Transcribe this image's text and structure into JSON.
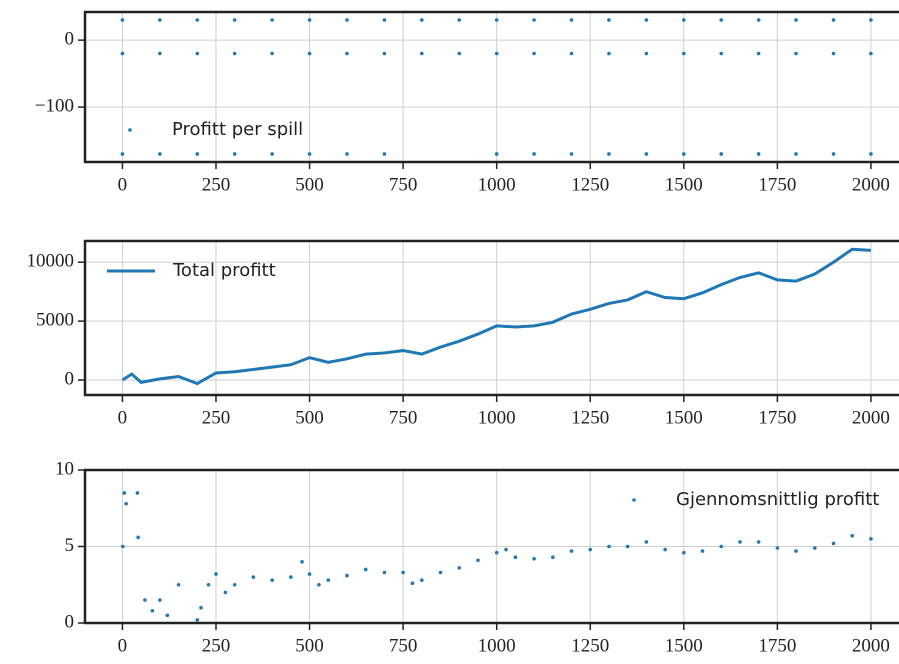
{
  "chart_data": [
    {
      "type": "scatter",
      "x": [
        0,
        0,
        0,
        100,
        100,
        100,
        200,
        200,
        200,
        300,
        300,
        300,
        400,
        400,
        400,
        500,
        500,
        500,
        600,
        600,
        600,
        700,
        700,
        700,
        800,
        800,
        900,
        900,
        1000,
        1000,
        1000,
        1100,
        1100,
        1100,
        1200,
        1200,
        1200,
        1300,
        1300,
        1300,
        1400,
        1400,
        1400,
        1500,
        1500,
        1500,
        1600,
        1600,
        1600,
        1700,
        1700,
        1700,
        1800,
        1800,
        1800,
        1900,
        1900,
        1900,
        2000,
        2000,
        2000
      ],
      "series": [
        {
          "name": "Profitt per spill",
          "color": "#1f77b4",
          "values": [
            30,
            -20,
            -170,
            30,
            -20,
            -170,
            30,
            -20,
            -170,
            30,
            -20,
            -170,
            30,
            -20,
            -170,
            30,
            -20,
            -170,
            30,
            -20,
            -170,
            30,
            -20,
            -170,
            30,
            -20,
            30,
            -20,
            30,
            -20,
            -170,
            30,
            -20,
            -170,
            30,
            -20,
            -170,
            30,
            -20,
            -170,
            30,
            -20,
            -170,
            30,
            -20,
            -170,
            30,
            -20,
            -170,
            30,
            -20,
            -170,
            30,
            -20,
            -170,
            30,
            -20,
            -170,
            30,
            -20,
            -170
          ]
        }
      ],
      "xlim": [
        -100,
        2075
      ],
      "ylim": [
        -182,
        42
      ],
      "xticks": [
        0,
        250,
        500,
        750,
        1000,
        1250,
        1500,
        1750,
        2000
      ],
      "yticks": [
        {
          "value": -100,
          "label": "−100"
        },
        0
      ],
      "grid": true,
      "legend": "lower left"
    },
    {
      "type": "line",
      "x": [
        0,
        25,
        50,
        100,
        150,
        200,
        250,
        300,
        350,
        400,
        450,
        500,
        550,
        600,
        650,
        700,
        750,
        800,
        850,
        900,
        950,
        1000,
        1050,
        1100,
        1150,
        1200,
        1250,
        1300,
        1350,
        1400,
        1450,
        1500,
        1550,
        1600,
        1650,
        1700,
        1750,
        1800,
        1850,
        1900,
        1950,
        2000
      ],
      "series": [
        {
          "name": "Total profitt",
          "color": "#1f77b4",
          "values": [
            0,
            500,
            -200,
            100,
            300,
            -300,
            600,
            700,
            900,
            1100,
            1300,
            1900,
            1500,
            1800,
            2200,
            2300,
            2500,
            2200,
            2800,
            3300,
            3900,
            4600,
            4500,
            4600,
            4900,
            5600,
            6000,
            6500,
            6800,
            7500,
            7000,
            6900,
            7400,
            8100,
            8700,
            9100,
            8500,
            8400,
            9000,
            10000,
            11100,
            11000
          ]
        }
      ],
      "xlim": [
        -100,
        2075
      ],
      "ylim": [
        -1270,
        11800
      ],
      "xticks": [
        0,
        250,
        500,
        750,
        1000,
        1250,
        1500,
        1750,
        2000
      ],
      "yticks": [
        0,
        5000,
        10000
      ],
      "grid": true,
      "legend": "upper left"
    },
    {
      "type": "scatter",
      "x": [
        1,
        5,
        10,
        40,
        42,
        60,
        80,
        100,
        120,
        150,
        200,
        210,
        230,
        250,
        275,
        300,
        350,
        400,
        450,
        480,
        500,
        525,
        550,
        600,
        650,
        700,
        750,
        775,
        800,
        850,
        900,
        950,
        1000,
        1025,
        1050,
        1100,
        1150,
        1200,
        1250,
        1300,
        1350,
        1400,
        1450,
        1500,
        1550,
        1600,
        1650,
        1700,
        1750,
        1800,
        1850,
        1900,
        1950,
        2000
      ],
      "series": [
        {
          "name": "Gjennomsnittlig profitt",
          "color": "#1f77b4",
          "values": [
            5,
            8.5,
            7.8,
            8.5,
            5.6,
            1.5,
            0.8,
            1.5,
            0.5,
            2.5,
            0.2,
            1,
            2.5,
            3.2,
            2.0,
            2.5,
            3,
            2.8,
            3,
            4,
            3.2,
            2.5,
            2.8,
            3.1,
            3.5,
            3.3,
            3.3,
            2.6,
            2.8,
            3.3,
            3.6,
            4.1,
            4.6,
            4.8,
            4.3,
            4.2,
            4.3,
            4.7,
            4.8,
            5.0,
            5.0,
            5.3,
            4.8,
            4.6,
            4.7,
            5.0,
            5.3,
            5.3,
            4.9,
            4.7,
            4.9,
            5.2,
            5.7,
            5.5
          ]
        }
      ],
      "xlim": [
        -100,
        2075
      ],
      "ylim": [
        0,
        10
      ],
      "xticks": [
        0,
        250,
        500,
        750,
        1000,
        1250,
        1500,
        1750,
        2000
      ],
      "yticks": [
        0,
        5,
        10
      ],
      "grid": true,
      "legend": "upper right"
    }
  ]
}
